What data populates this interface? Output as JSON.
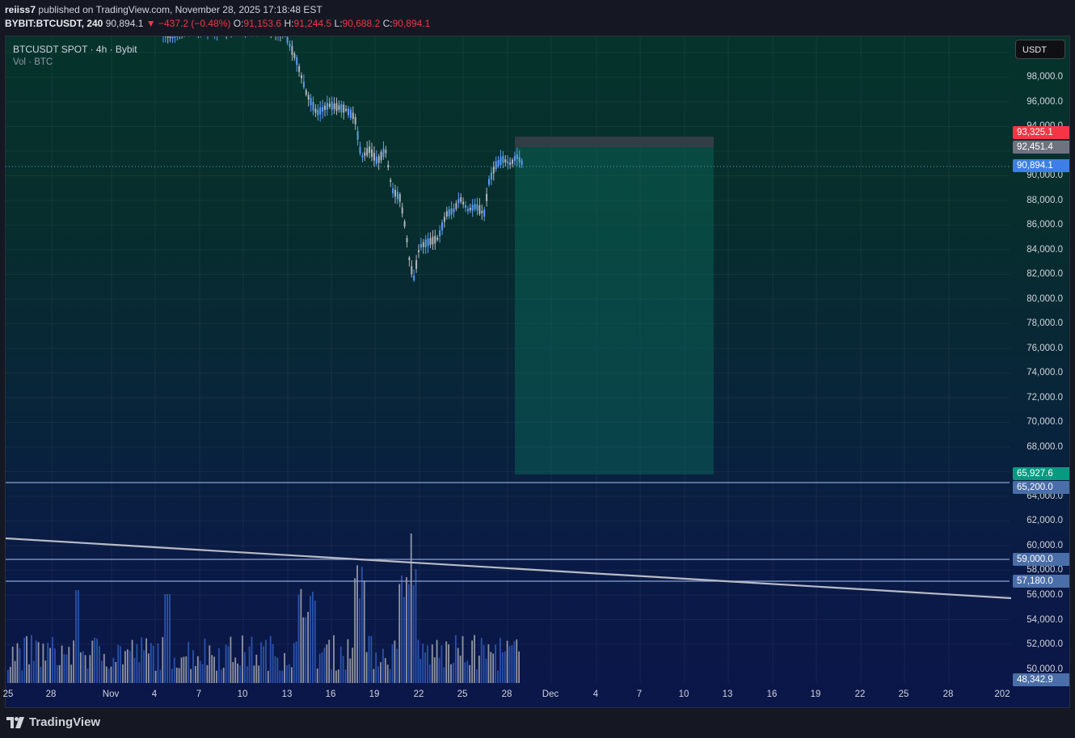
{
  "header": {
    "author": "reiiss7",
    "published_text": "published on TradingView.com, November 28, 2025 17:18:48 EST",
    "symbol": "BYBIT:BTCUSDT, 240",
    "last": "90,894.1",
    "change": "▼ −437.2 (−0.48%)",
    "open_label": "O:",
    "open": "91,153.6",
    "high_label": "H:",
    "high": "91,244.5",
    "low_label": "L:",
    "low": "90,688.2",
    "close_label": "C:",
    "close": "90,894.1"
  },
  "legend": {
    "title": "BTCUSDT SPOT · 4h · Bybit",
    "volume": "Vol · BTC"
  },
  "currency_button": "USDT",
  "price_axis": [
    "98,000.0",
    "96,000.0",
    "94,000.0",
    "90,000.0",
    "88,000.0",
    "86,000.0",
    "84,000.0",
    "82,000.0",
    "80,000.0",
    "78,000.0",
    "76,000.0",
    "74,000.0",
    "72,000.0",
    "70,000.0",
    "68,000.0",
    "64,000.0",
    "62,000.0",
    "60,000.0",
    "58,000.0",
    "56,000.0",
    "54,000.0",
    "52,000.0",
    "50,000.0"
  ],
  "price_tags": {
    "stop": "93,325.1",
    "entry": "92,451.4",
    "current": "90,894.1",
    "target": "65,927.6",
    "level1": "65,200.0",
    "level2": "59,000.0",
    "level3": "57,180.0",
    "bottom": "48,342.9"
  },
  "time_axis": [
    "25",
    "28",
    "Nov",
    "4",
    "7",
    "10",
    "13",
    "16",
    "19",
    "22",
    "25",
    "28",
    "Dec",
    "4",
    "7",
    "10",
    "13",
    "16",
    "19",
    "22",
    "25",
    "28",
    "202"
  ],
  "footer": {
    "brand": "TradingView"
  },
  "colors": {
    "up": "#5b9cf6",
    "down": "#b2b5be",
    "red": "#f23645",
    "green_tag": "#089981",
    "level_tag": "#4a6ea8",
    "current_tag": "#3d7ee8"
  }
}
